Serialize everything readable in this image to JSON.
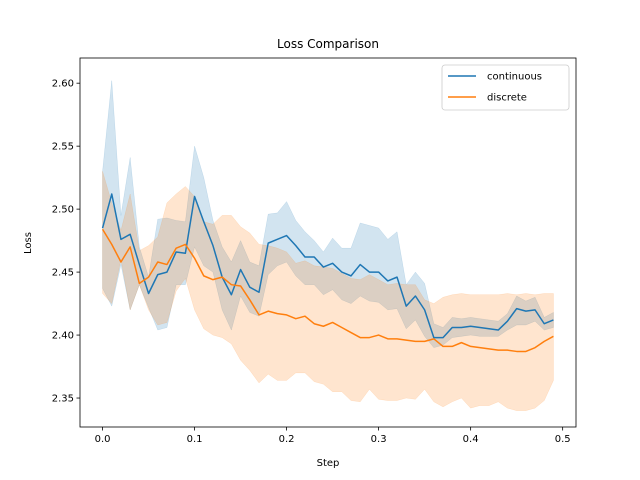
{
  "chart_data": {
    "type": "line",
    "title": "Loss Comparison",
    "xlabel": "Step",
    "ylabel": "Loss",
    "xlim": [
      -0.0245,
      0.5145
    ],
    "ylim": [
      2.327,
      2.62
    ],
    "xticks": [
      0.0,
      0.1,
      0.2,
      0.3,
      0.4,
      0.5
    ],
    "xtick_labels": [
      "0.0",
      "0.1",
      "0.2",
      "0.3",
      "0.4",
      "0.5"
    ],
    "yticks": [
      2.35,
      2.4,
      2.45,
      2.5,
      2.55,
      2.6
    ],
    "ytick_labels": [
      "2.35",
      "2.40",
      "2.45",
      "2.50",
      "2.55",
      "2.60"
    ],
    "grid": false,
    "legend_position": "upper right",
    "x": [
      0.0,
      0.01,
      0.02,
      0.03,
      0.04,
      0.05,
      0.06,
      0.07,
      0.08,
      0.09,
      0.1,
      0.11,
      0.12,
      0.13,
      0.14,
      0.15,
      0.16,
      0.17,
      0.18,
      0.19,
      0.2,
      0.21,
      0.22,
      0.23,
      0.24,
      0.25,
      0.26,
      0.27,
      0.28,
      0.29,
      0.3,
      0.31,
      0.32,
      0.33,
      0.34,
      0.35,
      0.36,
      0.37,
      0.38,
      0.39,
      0.4,
      0.41,
      0.42,
      0.43,
      0.44,
      0.45,
      0.46,
      0.47,
      0.48,
      0.49
    ],
    "series": [
      {
        "name": "continuous",
        "color": "#1f77b4",
        "values": [
          2.485,
          2.512,
          2.476,
          2.48,
          2.456,
          2.433,
          2.448,
          2.45,
          2.466,
          2.465,
          2.51,
          2.49,
          2.471,
          2.446,
          2.432,
          2.452,
          2.438,
          2.434,
          2.473,
          2.476,
          2.479,
          2.471,
          2.462,
          2.462,
          2.454,
          2.457,
          2.45,
          2.447,
          2.456,
          2.45,
          2.45,
          2.443,
          2.446,
          2.423,
          2.431,
          2.42,
          2.398,
          2.398,
          2.406,
          2.406,
          2.407,
          2.406,
          2.405,
          2.404,
          2.411,
          2.421,
          2.419,
          2.42,
          2.409,
          2.412
        ],
        "lower": [
          2.437,
          2.423,
          2.456,
          2.42,
          2.44,
          2.422,
          2.404,
          2.406,
          2.44,
          2.44,
          2.47,
          2.455,
          2.45,
          2.42,
          2.404,
          2.431,
          2.418,
          2.415,
          2.448,
          2.455,
          2.458,
          2.447,
          2.44,
          2.44,
          2.432,
          2.436,
          2.428,
          2.425,
          2.431,
          2.427,
          2.426,
          2.42,
          2.421,
          2.405,
          2.412,
          2.399,
          2.39,
          2.392,
          2.398,
          2.399,
          2.4,
          2.399,
          2.399,
          2.399,
          2.404,
          2.408,
          2.408,
          2.411,
          2.404,
          2.406
        ],
        "upper": [
          2.53,
          2.602,
          2.495,
          2.541,
          2.47,
          2.446,
          2.492,
          2.493,
          2.491,
          2.49,
          2.55,
          2.525,
          2.491,
          2.47,
          2.458,
          2.475,
          2.458,
          2.455,
          2.496,
          2.497,
          2.506,
          2.491,
          2.482,
          2.475,
          2.466,
          2.477,
          2.469,
          2.469,
          2.489,
          2.487,
          2.485,
          2.476,
          2.482,
          2.44,
          2.45,
          2.441,
          2.409,
          2.406,
          2.414,
          2.413,
          2.414,
          2.413,
          2.412,
          2.411,
          2.417,
          2.431,
          2.427,
          2.43,
          2.414,
          2.418
        ]
      },
      {
        "name": "discrete",
        "color": "#ff7f0e",
        "values": [
          2.484,
          2.472,
          2.458,
          2.47,
          2.441,
          2.446,
          2.458,
          2.456,
          2.469,
          2.472,
          2.461,
          2.447,
          2.444,
          2.446,
          2.44,
          2.439,
          2.428,
          2.416,
          2.419,
          2.417,
          2.416,
          2.413,
          2.415,
          2.409,
          2.407,
          2.41,
          2.406,
          2.402,
          2.398,
          2.398,
          2.4,
          2.397,
          2.397,
          2.396,
          2.395,
          2.395,
          2.397,
          2.391,
          2.391,
          2.394,
          2.391,
          2.39,
          2.389,
          2.388,
          2.388,
          2.387,
          2.387,
          2.39,
          2.395,
          2.399
        ],
        "lower": [
          2.433,
          2.425,
          2.46,
          2.42,
          2.44,
          2.42,
          2.408,
          2.41,
          2.435,
          2.445,
          2.42,
          2.405,
          2.4,
          2.398,
          2.393,
          2.38,
          2.372,
          2.362,
          2.369,
          2.364,
          2.364,
          2.37,
          2.37,
          2.363,
          2.361,
          2.355,
          2.355,
          2.348,
          2.347,
          2.357,
          2.349,
          2.348,
          2.348,
          2.35,
          2.349,
          2.357,
          2.347,
          2.343,
          2.347,
          2.35,
          2.342,
          2.344,
          2.344,
          2.347,
          2.342,
          2.34,
          2.34,
          2.342,
          2.348,
          2.364
        ],
        "upper": [
          2.53,
          2.505,
          2.483,
          2.512,
          2.467,
          2.471,
          2.478,
          2.505,
          2.512,
          2.518,
          2.51,
          2.49,
          2.488,
          2.495,
          2.495,
          2.486,
          2.481,
          2.472,
          2.471,
          2.469,
          2.466,
          2.457,
          2.459,
          2.455,
          2.454,
          2.453,
          2.449,
          2.445,
          2.444,
          2.448,
          2.444,
          2.44,
          2.441,
          2.44,
          2.44,
          2.428,
          2.425,
          2.43,
          2.432,
          2.433,
          2.432,
          2.432,
          2.432,
          2.432,
          2.433,
          2.432,
          2.433,
          2.432,
          2.433,
          2.433
        ]
      }
    ]
  }
}
